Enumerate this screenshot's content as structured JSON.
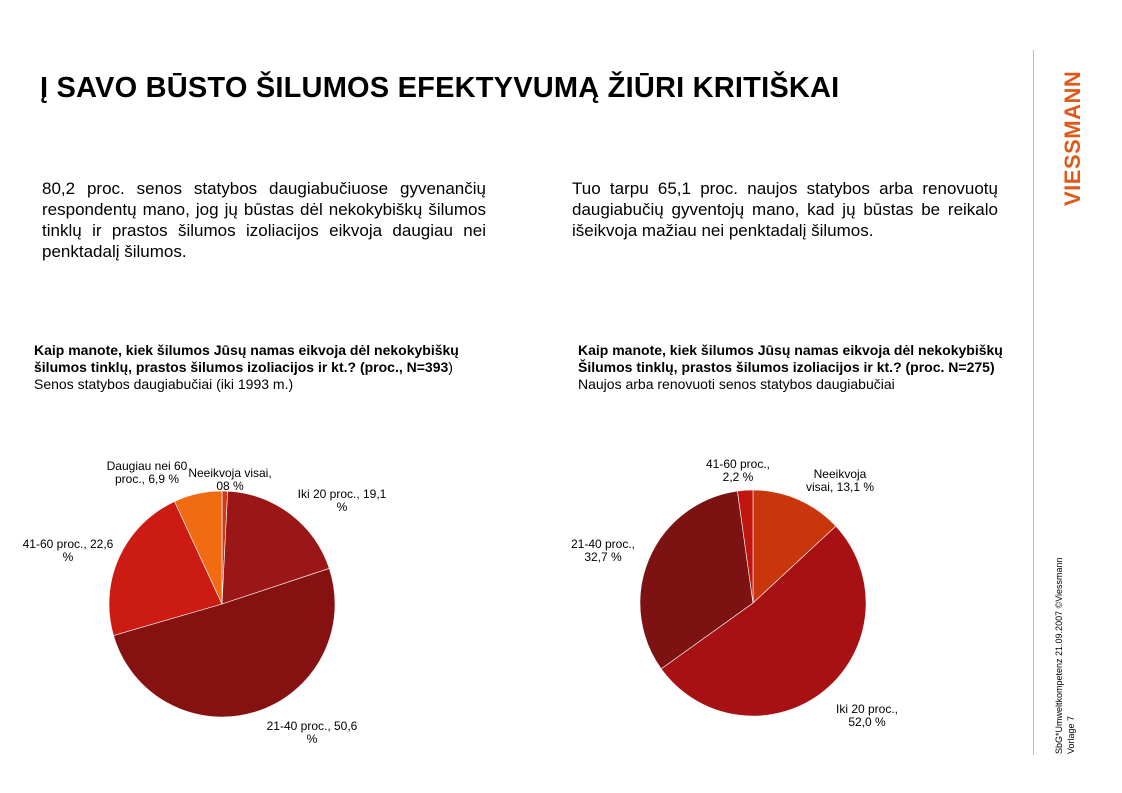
{
  "title": "Į SAVO BŪSTO ŠILUMOS EFEKTYVUMĄ ŽIŪRI KRITIŠKAI",
  "left_text": "80,2 proc. senos statybos daugiabučiuose gyvenančių respondentų mano, jog jų būstas dėl nekokybiškų šilumos tinklų ir prastos šilumos izoliacijos eikvoja daugiau nei penktadalį šilumos.",
  "right_text": "Tuo tarpu 65,1 proc. naujos statybos arba renovuotų daugiabučių gyventojų mano, kad jų būstas be reikalo išeikvoja mažiau nei penktadalį šilumos.",
  "left_chart_heading": {
    "line1": "Kaip manote, kiek šilumos Jūsų namas eikvoja dėl nekokybiškų",
    "line2_bold": "šilumos tinklų, prastos šilumos izoliacijos ir kt.? (proc., N=393",
    "line2_tail": ")",
    "line3": "Senos statybos daugiabučiai  (iki 1993 m.)"
  },
  "right_chart_heading": {
    "line1": "Kaip manote, kiek šilumos Jūsų namas eikvoja dėl nekokybiškų",
    "line2": "Šilumos tinklų, prastos šilumos izoliacijos ir kt.? (proc. N=275)",
    "line3": "Naujos arba renovuoti senos statybos daugiabučiai"
  },
  "logo_text": "VIESSMANN",
  "footer": {
    "line1": "SbG*Umweltkompetenz     21.09.2007     ©Viessmann Werke",
    "line2": "Vorlage 7"
  },
  "colors": {
    "logo": "#e0591a",
    "divider": "#bdbdbd"
  },
  "chart_data": [
    {
      "type": "pie",
      "title": "Kaip manote, kiek šilumos Jūsų namas eikvoja dėl nekokybiškų šilumos tinklų, prastos šilumos izoliacijos ir kt.? (proc., N=393)",
      "subtitle": "Senos statybos daugiabučiai  (iki 1993 m.)",
      "slices": [
        {
          "label_lines": [
            "Neeikvoja visai,",
            "08 %"
          ],
          "value": 0.8,
          "color": "#cd3b1a"
        },
        {
          "label_lines": [
            "Iki 20 proc., 19,1",
            "%"
          ],
          "value": 19.1,
          "color": "#9b1717"
        },
        {
          "label_lines": [
            "21-40 proc., 50,6",
            "%"
          ],
          "value": 50.6,
          "color": "#861111"
        },
        {
          "label_lines": [
            "41-60 proc., 22,6",
            "%"
          ],
          "value": 22.6,
          "color": "#cc1b13"
        },
        {
          "label_lines": [
            "Daugiau nei 60",
            "proc., 6,9 %"
          ],
          "value": 6.9,
          "color": "#f06b12"
        }
      ]
    },
    {
      "type": "pie",
      "title": "Kaip manote, kiek šilumos Jūsų namas eikvoja dėl nekokybiškų Šilumos tinklų, prastos šilumos izoliacijos ir kt.? (proc. N=275)",
      "subtitle": "Naujos arba renovuoti senos statybos daugiabučiai",
      "slices": [
        {
          "label_lines": [
            "Neeikvoja",
            "visai, 13,1 %"
          ],
          "value": 13.1,
          "color": "#c9360e"
        },
        {
          "label_lines": [
            "Iki 20 proc.,",
            "52,0 %"
          ],
          "value": 52.0,
          "color": "#a81113"
        },
        {
          "label_lines": [
            "21-40 proc.,",
            "32,7 %"
          ],
          "value": 32.7,
          "color": "#7c1212"
        },
        {
          "label_lines": [
            "41-60 proc.,",
            "2,2 %"
          ],
          "value": 2.2,
          "color": "#c0160f"
        }
      ]
    }
  ]
}
